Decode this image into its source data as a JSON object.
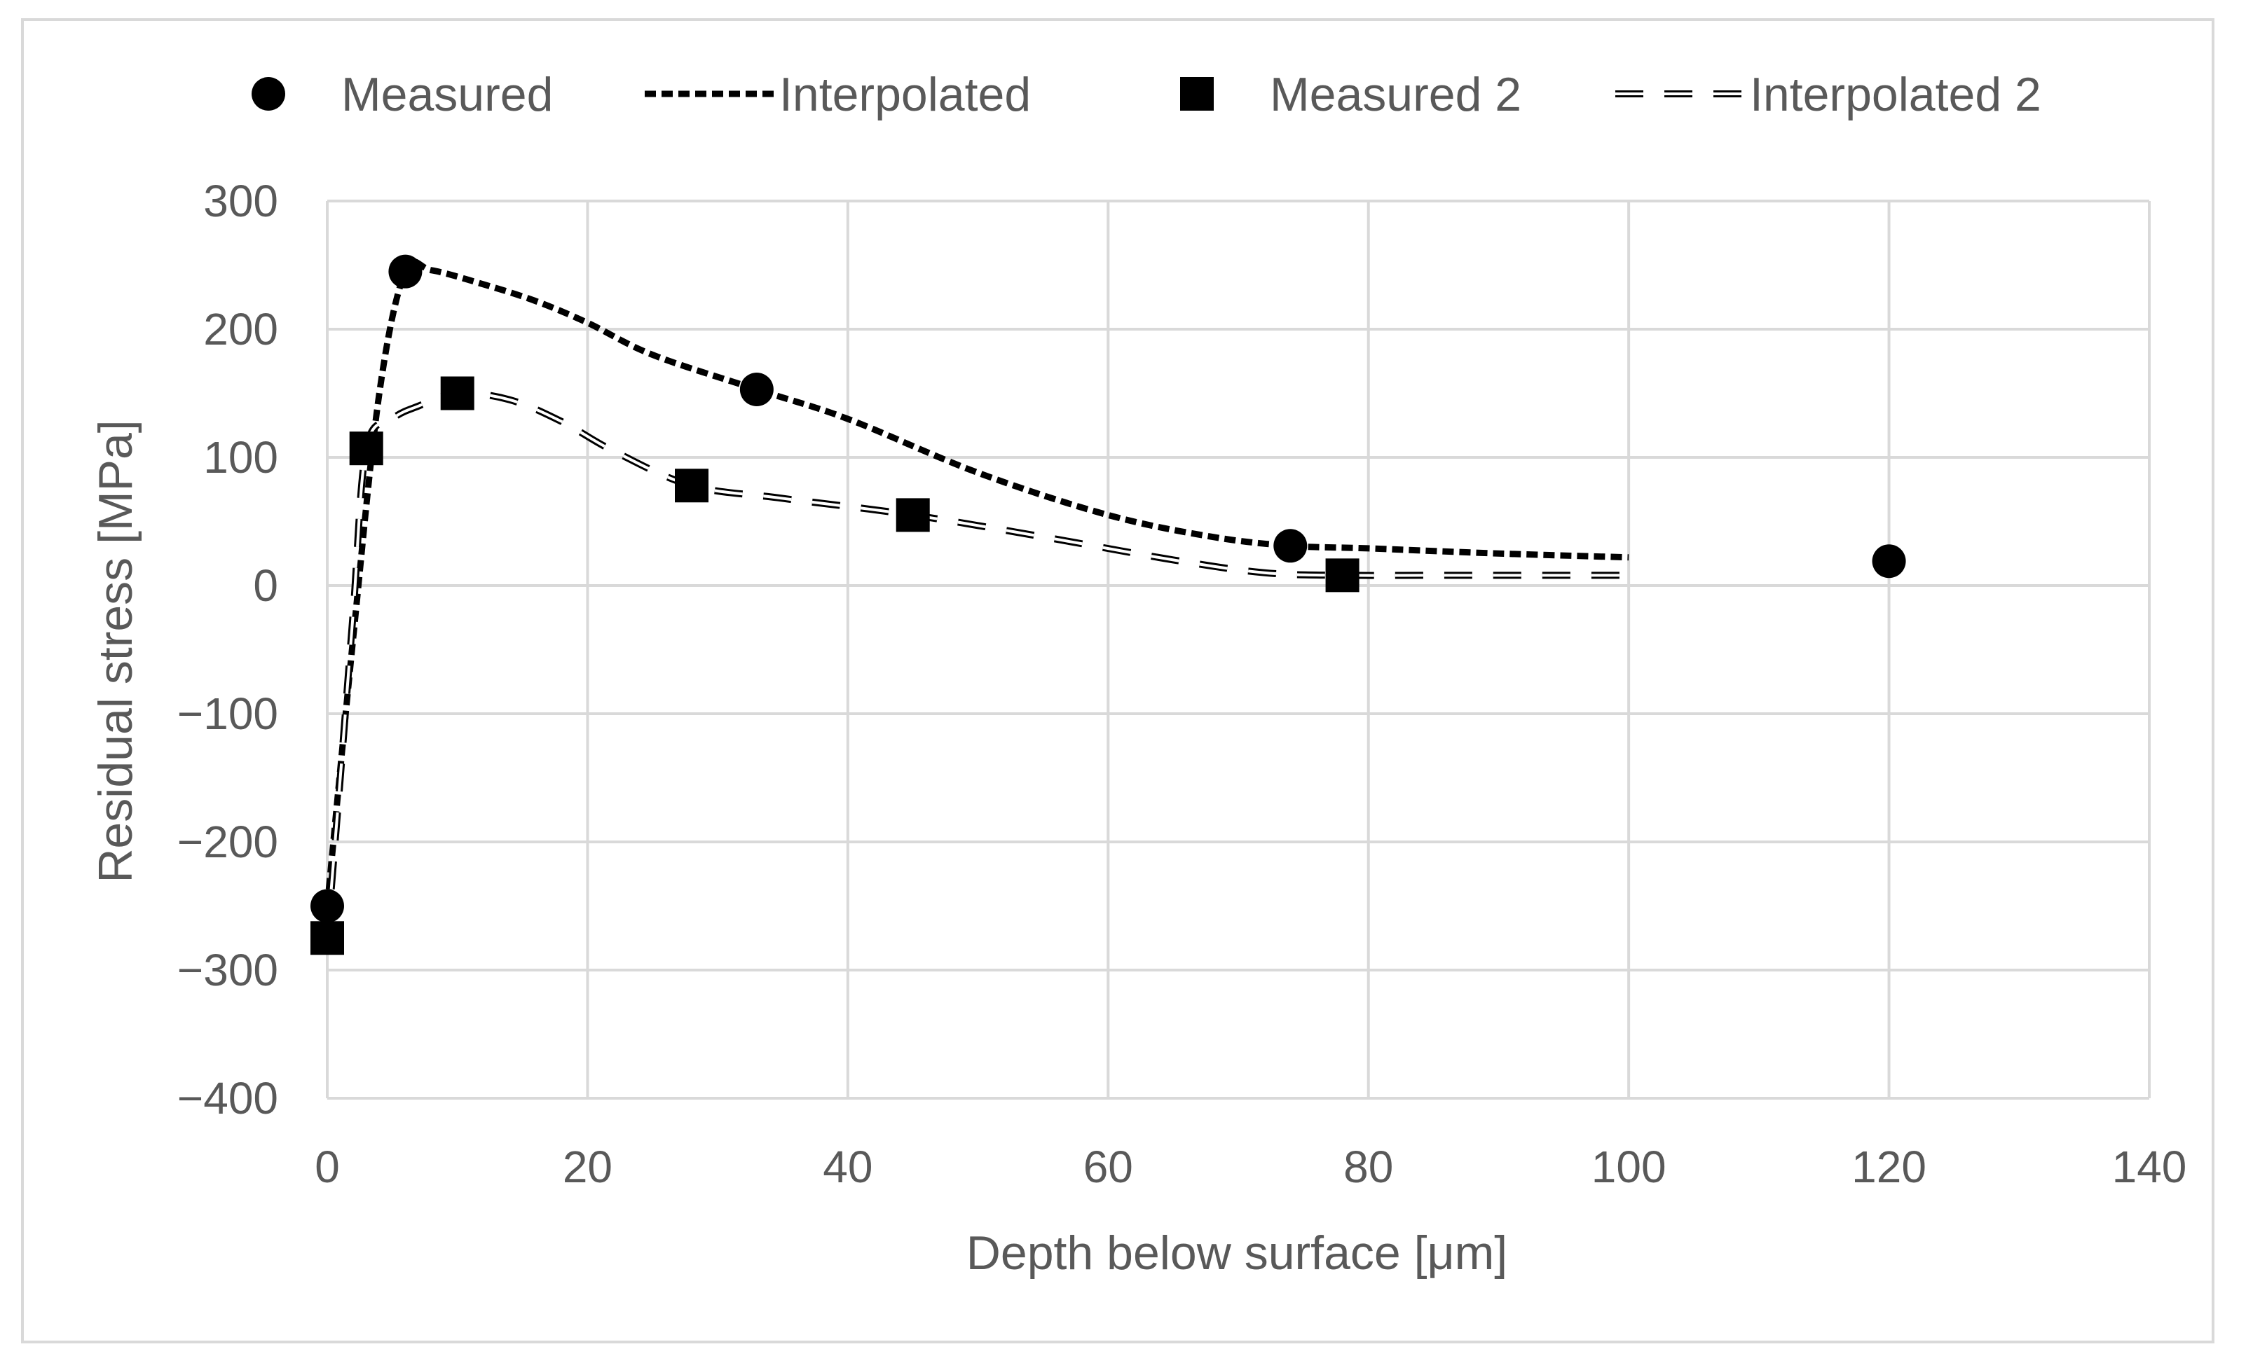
{
  "chart_data": {
    "type": "scatter",
    "title": "",
    "xlabel": "Depth below surface [μm]",
    "ylabel": "Residual stress [MPa]",
    "xlim": [
      0,
      140
    ],
    "ylim": [
      -400,
      300
    ],
    "xticks": [
      0,
      20,
      40,
      60,
      80,
      100,
      120,
      140
    ],
    "yticks": [
      300,
      200,
      100,
      0,
      -100,
      -200,
      -300,
      -400
    ],
    "xtick_labels": [
      "0",
      "20",
      "40",
      "60",
      "80",
      "100",
      "120",
      "140"
    ],
    "ytick_labels": [
      "300",
      "200",
      "100",
      "0",
      "−100",
      "−200",
      "−300",
      "−400"
    ],
    "grid": true,
    "legend_position": "top",
    "series": [
      {
        "name": "Measured",
        "kind": "markers",
        "marker": "circle",
        "color": "#000000",
        "x": [
          0,
          6,
          33,
          74,
          120
        ],
        "y": [
          -250,
          245,
          153,
          31,
          19
        ]
      },
      {
        "name": "Interpolated",
        "kind": "line",
        "style": "short-dash",
        "color": "#000000",
        "x": [
          0,
          2,
          4,
          6,
          8,
          12,
          16,
          20,
          25,
          33,
          40,
          50,
          60,
          68,
          74,
          80,
          90,
          100
        ],
        "y": [
          -250,
          -40,
          150,
          245,
          246,
          235,
          222,
          205,
          180,
          153,
          130,
          88,
          55,
          38,
          31,
          29,
          25,
          22
        ]
      },
      {
        "name": "Measured 2",
        "kind": "markers",
        "marker": "square",
        "color": "#000000",
        "x": [
          0,
          3,
          10,
          28,
          45,
          78
        ],
        "y": [
          -275,
          107,
          150,
          78,
          55,
          8
        ]
      },
      {
        "name": "Interpolated 2",
        "kind": "line",
        "style": "long-dash-hollow",
        "color": "#000000",
        "x": [
          0,
          1,
          2,
          3,
          5,
          7,
          10,
          14,
          18,
          22,
          28,
          35,
          45,
          55,
          65,
          72,
          78,
          85,
          92,
          100
        ],
        "y": [
          -275,
          -150,
          -20,
          107,
          130,
          140,
          150,
          145,
          128,
          105,
          78,
          68,
          55,
          38,
          20,
          10,
          8,
          8,
          8,
          8
        ]
      }
    ]
  }
}
